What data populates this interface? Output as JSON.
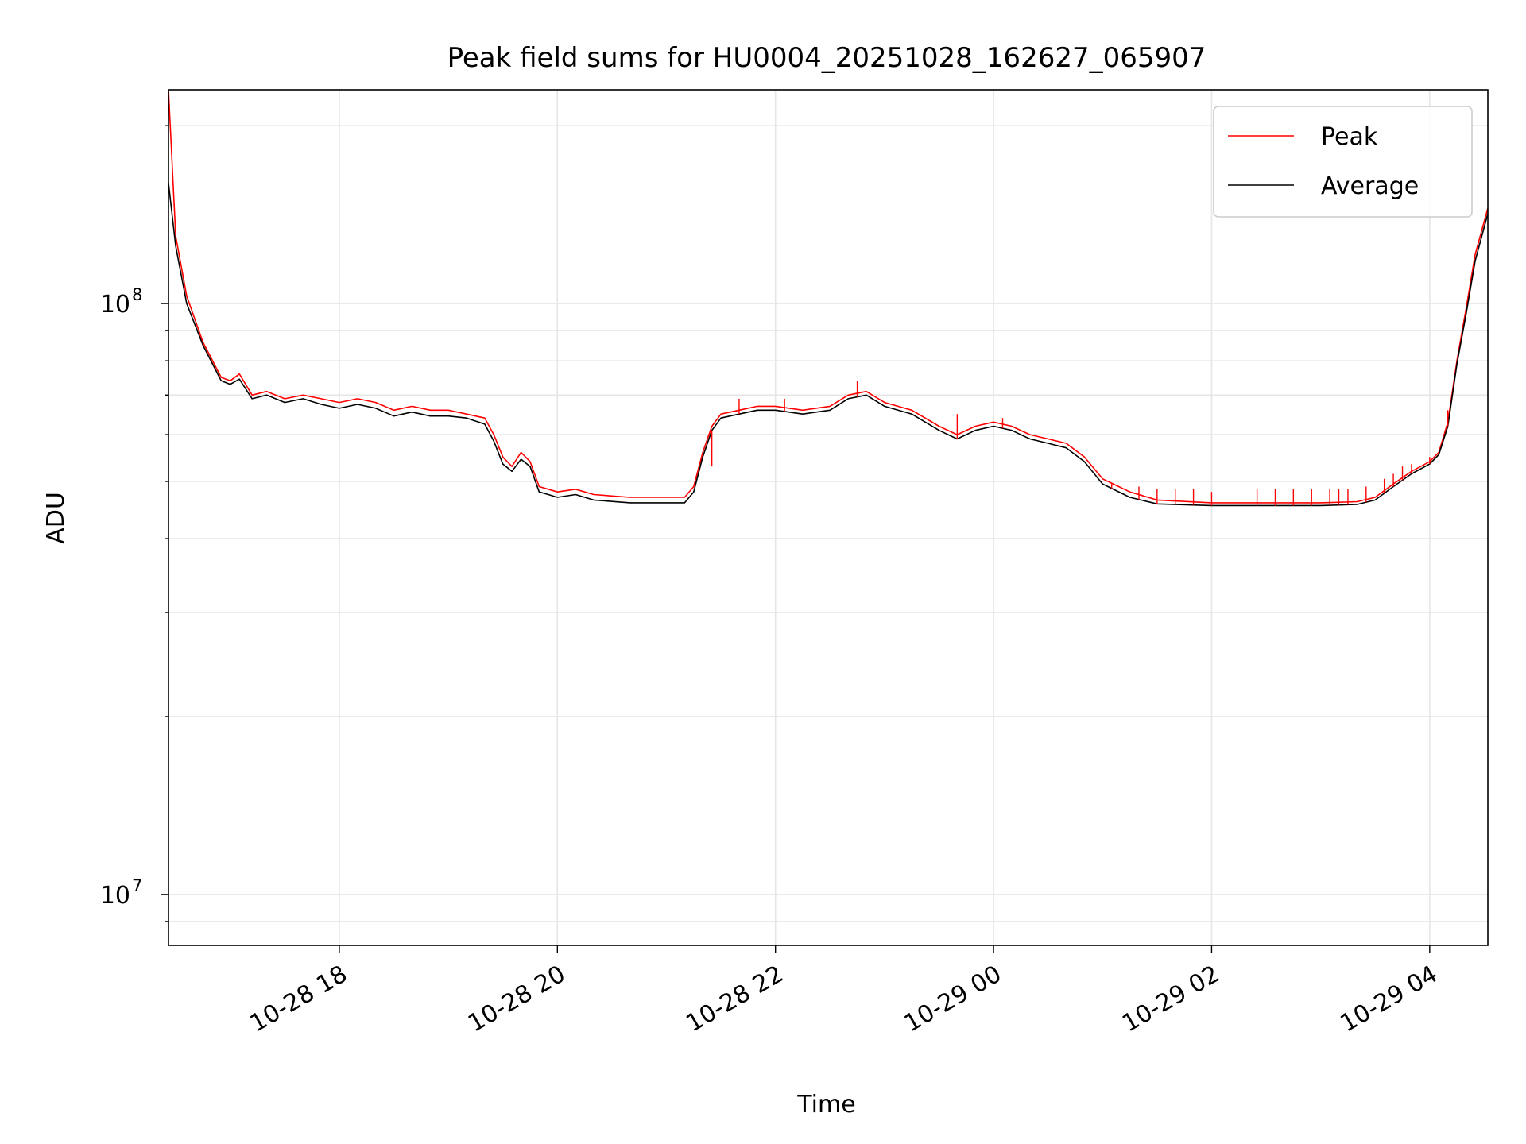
{
  "chart_data": {
    "type": "line",
    "title": "Peak field sums for HU0004_20251028_162627_065907",
    "xlabel": "Time",
    "ylabel": "ADU",
    "y_scale": "log",
    "grid": true,
    "legend_position": "top-right",
    "xlim": [
      "2025-10-28 16:26",
      "2025-10-29 04:32"
    ],
    "ylim": [
      8200000.0,
      230000000.0
    ],
    "x_ticks": [
      "10-28 18",
      "10-28 20",
      "10-28 22",
      "10-29 00",
      "10-29 02",
      "10-29 04"
    ],
    "x_tick_times": [
      "2025-10-28 18:00",
      "2025-10-28 20:00",
      "2025-10-28 22:00",
      "2025-10-29 00:00",
      "2025-10-29 02:00",
      "2025-10-29 04:00"
    ],
    "y_ticks": [
      {
        "value": 10000000.0,
        "base": "10",
        "exp": "7"
      },
      {
        "value": 100000000.0,
        "base": "10",
        "exp": "8"
      }
    ],
    "series": [
      {
        "name": "Peak",
        "color": "#ff0000",
        "x": [
          "2025-10-28 16:26",
          "2025-10-28 16:30",
          "2025-10-28 16:36",
          "2025-10-28 16:45",
          "2025-10-28 16:55",
          "2025-10-28 17:00",
          "2025-10-28 17:05",
          "2025-10-28 17:12",
          "2025-10-28 17:20",
          "2025-10-28 17:30",
          "2025-10-28 17:40",
          "2025-10-28 17:50",
          "2025-10-28 18:00",
          "2025-10-28 18:10",
          "2025-10-28 18:20",
          "2025-10-28 18:30",
          "2025-10-28 18:40",
          "2025-10-28 18:50",
          "2025-10-28 19:00",
          "2025-10-28 19:10",
          "2025-10-28 19:20",
          "2025-10-28 19:25",
          "2025-10-28 19:30",
          "2025-10-28 19:35",
          "2025-10-28 19:40",
          "2025-10-28 19:45",
          "2025-10-28 19:50",
          "2025-10-28 19:55",
          "2025-10-28 20:00",
          "2025-10-28 20:10",
          "2025-10-28 20:20",
          "2025-10-28 20:40",
          "2025-10-28 21:00",
          "2025-10-28 21:10",
          "2025-10-28 21:15",
          "2025-10-28 21:20",
          "2025-10-28 21:25",
          "2025-10-28 21:30",
          "2025-10-28 21:40",
          "2025-10-28 21:50",
          "2025-10-28 22:00",
          "2025-10-28 22:15",
          "2025-10-28 22:30",
          "2025-10-28 22:40",
          "2025-10-28 22:50",
          "2025-10-28 23:00",
          "2025-10-28 23:15",
          "2025-10-28 23:30",
          "2025-10-28 23:40",
          "2025-10-28 23:50",
          "2025-10-29 00:00",
          "2025-10-29 00:10",
          "2025-10-29 00:20",
          "2025-10-29 00:30",
          "2025-10-29 00:40",
          "2025-10-29 00:50",
          "2025-10-29 01:00",
          "2025-10-29 01:15",
          "2025-10-29 01:30",
          "2025-10-29 02:00",
          "2025-10-29 02:30",
          "2025-10-29 03:00",
          "2025-10-29 03:20",
          "2025-10-29 03:30",
          "2025-10-29 03:40",
          "2025-10-29 03:50",
          "2025-10-29 04:00",
          "2025-10-29 04:05",
          "2025-10-29 04:10",
          "2025-10-29 04:15",
          "2025-10-29 04:20",
          "2025-10-29 04:25",
          "2025-10-29 04:32"
        ],
        "values": [
          230000000.0,
          130000000.0,
          103000000.0,
          86000000.0,
          75000000.0,
          74000000.0,
          76000000.0,
          70000000.0,
          71000000.0,
          69000000.0,
          70000000.0,
          69000000.0,
          68000000.0,
          69000000.0,
          68000000.0,
          66000000.0,
          67000000.0,
          66000000.0,
          66000000.0,
          65000000.0,
          64000000.0,
          60000000.0,
          55000000.0,
          53000000.0,
          56000000.0,
          54000000.0,
          49000000.0,
          48500000.0,
          48000000.0,
          48500000.0,
          47500000.0,
          47000000.0,
          47000000.0,
          47000000.0,
          49000000.0,
          56000000.0,
          62000000.0,
          65000000.0,
          66000000.0,
          67000000.0,
          67000000.0,
          66000000.0,
          67000000.0,
          70000000.0,
          71000000.0,
          68000000.0,
          66000000.0,
          62000000.0,
          60000000.0,
          62000000.0,
          63000000.0,
          62000000.0,
          60000000.0,
          59000000.0,
          58000000.0,
          55000000.0,
          50500000.0,
          48000000.0,
          46500000.0,
          46000000.0,
          46000000.0,
          46000000.0,
          46200000.0,
          47000000.0,
          49500000.0,
          52000000.0,
          54000000.0,
          56000000.0,
          63000000.0,
          80000000.0,
          98000000.0,
          121000000.0,
          145000000.0
        ],
        "spikes": [
          {
            "x": "2025-10-28 21:25",
            "value": 53000000.0
          },
          {
            "x": "2025-10-28 21:40",
            "value": 69000000.0
          },
          {
            "x": "2025-10-28 22:05",
            "value": 69000000.0
          },
          {
            "x": "2025-10-28 22:45",
            "value": 74000000.0
          },
          {
            "x": "2025-10-28 23:40",
            "value": 65000000.0
          },
          {
            "x": "2025-10-29 00:05",
            "value": 64000000.0
          },
          {
            "x": "2025-10-29 00:20",
            "value": 59000000.0
          },
          {
            "x": "2025-10-29 01:05",
            "value": 49500000.0
          },
          {
            "x": "2025-10-29 01:20",
            "value": 49000000.0
          },
          {
            "x": "2025-10-29 01:30",
            "value": 48500000.0
          },
          {
            "x": "2025-10-29 01:40",
            "value": 48500000.0
          },
          {
            "x": "2025-10-29 01:50",
            "value": 48500000.0
          },
          {
            "x": "2025-10-29 02:00",
            "value": 48000000.0
          },
          {
            "x": "2025-10-29 02:25",
            "value": 48500000.0
          },
          {
            "x": "2025-10-29 02:35",
            "value": 48500000.0
          },
          {
            "x": "2025-10-29 02:45",
            "value": 48500000.0
          },
          {
            "x": "2025-10-29 02:55",
            "value": 48500000.0
          },
          {
            "x": "2025-10-29 03:05",
            "value": 48500000.0
          },
          {
            "x": "2025-10-29 03:10",
            "value": 48500000.0
          },
          {
            "x": "2025-10-29 03:15",
            "value": 48500000.0
          },
          {
            "x": "2025-10-29 03:25",
            "value": 49000000.0
          },
          {
            "x": "2025-10-29 03:35",
            "value": 50500000.0
          },
          {
            "x": "2025-10-29 03:40",
            "value": 51500000.0
          },
          {
            "x": "2025-10-29 03:45",
            "value": 53000000.0
          },
          {
            "x": "2025-10-29 03:50",
            "value": 53500000.0
          },
          {
            "x": "2025-10-29 04:00",
            "value": 55000000.0
          },
          {
            "x": "2025-10-29 04:10",
            "value": 66000000.0
          }
        ]
      },
      {
        "name": "Average",
        "color": "#000000",
        "x": [
          "2025-10-28 16:26",
          "2025-10-28 16:30",
          "2025-10-28 16:36",
          "2025-10-28 16:45",
          "2025-10-28 16:55",
          "2025-10-28 17:00",
          "2025-10-28 17:05",
          "2025-10-28 17:12",
          "2025-10-28 17:20",
          "2025-10-28 17:30",
          "2025-10-28 17:40",
          "2025-10-28 17:50",
          "2025-10-28 18:00",
          "2025-10-28 18:10",
          "2025-10-28 18:20",
          "2025-10-28 18:30",
          "2025-10-28 18:40",
          "2025-10-28 18:50",
          "2025-10-28 19:00",
          "2025-10-28 19:10",
          "2025-10-28 19:20",
          "2025-10-28 19:25",
          "2025-10-28 19:30",
          "2025-10-28 19:35",
          "2025-10-28 19:40",
          "2025-10-28 19:45",
          "2025-10-28 19:50",
          "2025-10-28 19:55",
          "2025-10-28 20:00",
          "2025-10-28 20:10",
          "2025-10-28 20:20",
          "2025-10-28 20:40",
          "2025-10-28 21:00",
          "2025-10-28 21:10",
          "2025-10-28 21:15",
          "2025-10-28 21:20",
          "2025-10-28 21:25",
          "2025-10-28 21:30",
          "2025-10-28 21:40",
          "2025-10-28 21:50",
          "2025-10-28 22:00",
          "2025-10-28 22:15",
          "2025-10-28 22:30",
          "2025-10-28 22:40",
          "2025-10-28 22:50",
          "2025-10-28 23:00",
          "2025-10-28 23:15",
          "2025-10-28 23:30",
          "2025-10-28 23:40",
          "2025-10-28 23:50",
          "2025-10-29 00:00",
          "2025-10-29 00:10",
          "2025-10-29 00:20",
          "2025-10-29 00:30",
          "2025-10-29 00:40",
          "2025-10-29 00:50",
          "2025-10-29 01:00",
          "2025-10-29 01:15",
          "2025-10-29 01:30",
          "2025-10-29 02:00",
          "2025-10-29 02:30",
          "2025-10-29 03:00",
          "2025-10-29 03:20",
          "2025-10-29 03:30",
          "2025-10-29 03:40",
          "2025-10-29 03:50",
          "2025-10-29 04:00",
          "2025-10-29 04:05",
          "2025-10-29 04:10",
          "2025-10-29 04:15",
          "2025-10-29 04:20",
          "2025-10-29 04:25",
          "2025-10-29 04:32"
        ],
        "values": [
          160000000.0,
          125000000.0,
          100000000.0,
          85000000.0,
          74000000.0,
          73000000.0,
          74500000.0,
          69000000.0,
          70000000.0,
          68000000.0,
          69000000.0,
          67500000.0,
          66500000.0,
          67500000.0,
          66500000.0,
          64500000.0,
          65500000.0,
          64500000.0,
          64500000.0,
          64000000.0,
          62500000.0,
          58500000.0,
          53500000.0,
          52000000.0,
          54500000.0,
          53000000.0,
          48000000.0,
          47500000.0,
          47000000.0,
          47500000.0,
          46500000.0,
          46000000.0,
          46000000.0,
          46000000.0,
          48000000.0,
          55000000.0,
          61000000.0,
          64000000.0,
          65000000.0,
          66000000.0,
          66000000.0,
          65000000.0,
          66000000.0,
          69000000.0,
          70000000.0,
          67000000.0,
          65000000.0,
          61000000.0,
          59000000.0,
          61000000.0,
          62000000.0,
          61000000.0,
          59000000.0,
          58000000.0,
          57000000.0,
          54000000.0,
          49500000.0,
          47000000.0,
          45800000.0,
          45500000.0,
          45500000.0,
          45500000.0,
          45700000.0,
          46500000.0,
          49000000.0,
          51500000.0,
          53500000.0,
          55500000.0,
          62000000.0,
          79000000.0,
          96000000.0,
          118000000.0,
          142000000.0
        ]
      }
    ]
  }
}
